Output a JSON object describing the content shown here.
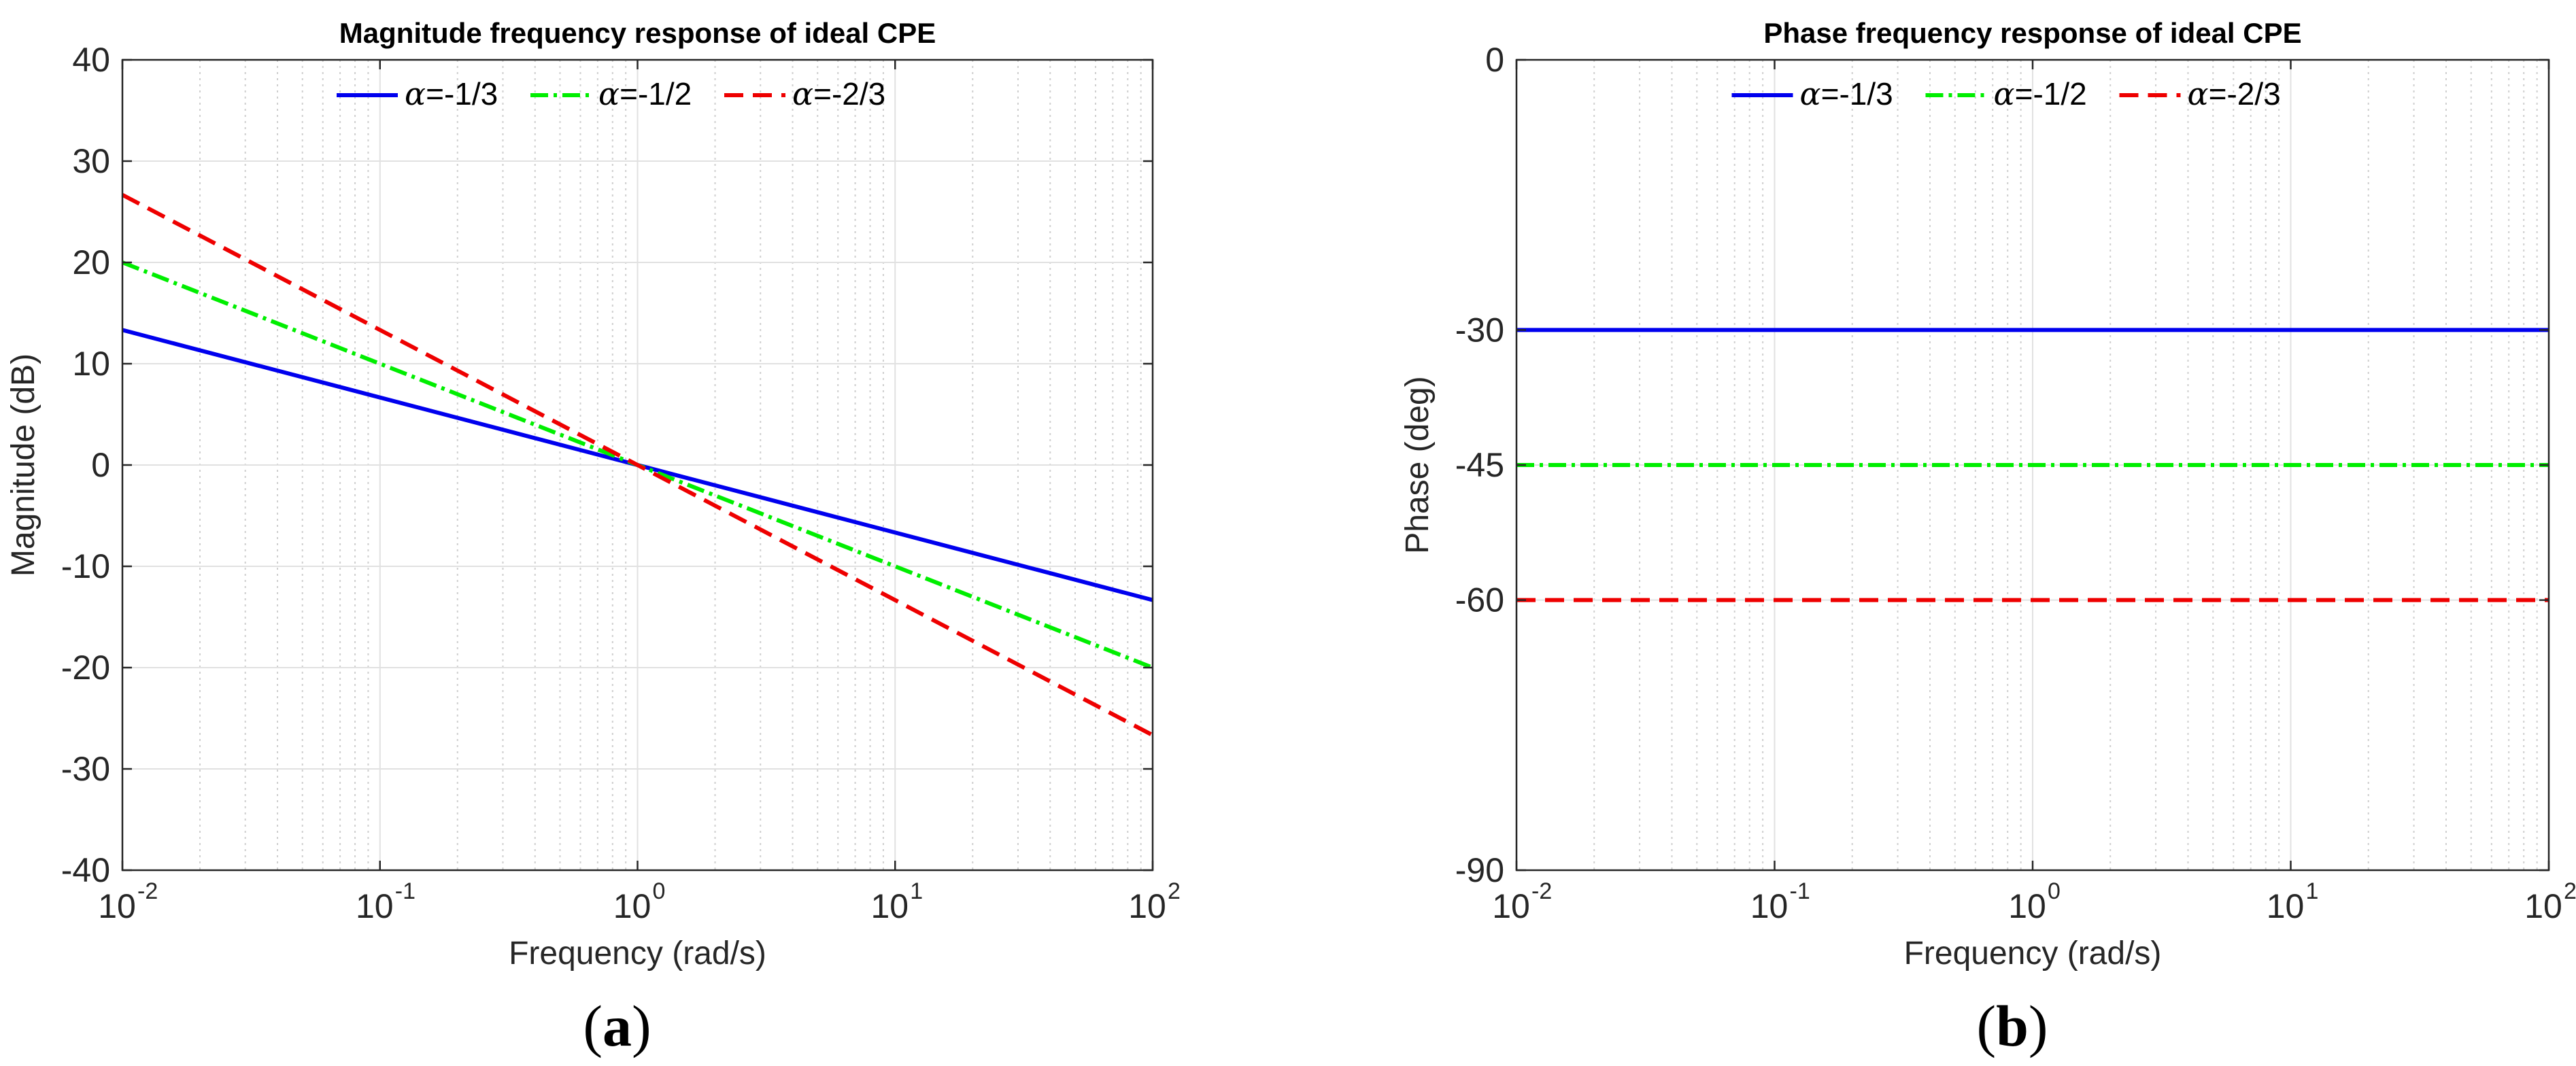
{
  "chart_data": [
    {
      "type": "line",
      "title": "Magnitude frequency response of ideal CPE",
      "xlabel": "Frequency (rad/s)",
      "ylabel": "Magnitude (dB)",
      "xscale": "log",
      "xlim": [
        0.01,
        100
      ],
      "ylim": [
        -40,
        40
      ],
      "grid": true,
      "minor_grid": true,
      "legend_position": "top-center",
      "x_ticks": [
        {
          "base": "10",
          "exp": "-2",
          "value": 0.01
        },
        {
          "base": "10",
          "exp": "-1",
          "value": 0.1
        },
        {
          "base": "10",
          "exp": "0",
          "value": 1
        },
        {
          "base": "10",
          "exp": "1",
          "value": 10
        },
        {
          "base": "10",
          "exp": "2",
          "value": 100
        }
      ],
      "y_ticks": [
        "40",
        "30",
        "20",
        "10",
        "0",
        "-10",
        "-20",
        "-30",
        "-40"
      ],
      "y_tick_values": [
        40,
        30,
        20,
        10,
        0,
        -10,
        -20,
        -30,
        -40
      ],
      "panel_label": "(a)",
      "series": [
        {
          "name": "α=-1/3",
          "greek": "α",
          "label_rest": "=-1/3",
          "color": "#0000ee",
          "dash": "solid",
          "x": [
            0.01,
            100
          ],
          "values": [
            13.33,
            -13.33
          ]
        },
        {
          "name": "α=-1/2",
          "greek": "α",
          "label_rest": "=-1/2",
          "color": "#00ee00",
          "dash": "dashdot",
          "x": [
            0.01,
            100
          ],
          "values": [
            20,
            -20
          ]
        },
        {
          "name": "α=-2/3",
          "greek": "α",
          "label_rest": "=-2/3",
          "color": "#ee0000",
          "dash": "dashed",
          "x": [
            0.01,
            100
          ],
          "values": [
            26.67,
            -26.67
          ]
        }
      ]
    },
    {
      "type": "line",
      "title": "Phase frequency response of ideal CPE",
      "xlabel": "Frequency (rad/s)",
      "ylabel": "Phase (deg)",
      "xscale": "log",
      "xlim": [
        0.01,
        100
      ],
      "ylim": [
        -90,
        0
      ],
      "grid": true,
      "minor_grid": true,
      "legend_position": "top-center",
      "x_ticks": [
        {
          "base": "10",
          "exp": "-2",
          "value": 0.01
        },
        {
          "base": "10",
          "exp": "-1",
          "value": 0.1
        },
        {
          "base": "10",
          "exp": "0",
          "value": 1
        },
        {
          "base": "10",
          "exp": "1",
          "value": 10
        },
        {
          "base": "10",
          "exp": "2",
          "value": 100
        }
      ],
      "y_ticks": [
        "0",
        "-30",
        "-45",
        "-60",
        "-90"
      ],
      "y_tick_values": [
        0,
        -30,
        -45,
        -60,
        -90
      ],
      "panel_label": "(b)",
      "series": [
        {
          "name": "α=-1/3",
          "greek": "α",
          "label_rest": "=-1/3",
          "color": "#0000ee",
          "dash": "solid",
          "x": [
            0.01,
            100
          ],
          "values": [
            -30,
            -30
          ]
        },
        {
          "name": "α=-1/2",
          "greek": "α",
          "label_rest": "=-1/2",
          "color": "#00ee00",
          "dash": "dashdot",
          "x": [
            0.01,
            100
          ],
          "values": [
            -45,
            -45
          ]
        },
        {
          "name": "α=-2/3",
          "greek": "α",
          "label_rest": "=-2/3",
          "color": "#ee0000",
          "dash": "dashed",
          "x": [
            0.01,
            100
          ],
          "values": [
            -60,
            -60
          ]
        }
      ]
    }
  ]
}
